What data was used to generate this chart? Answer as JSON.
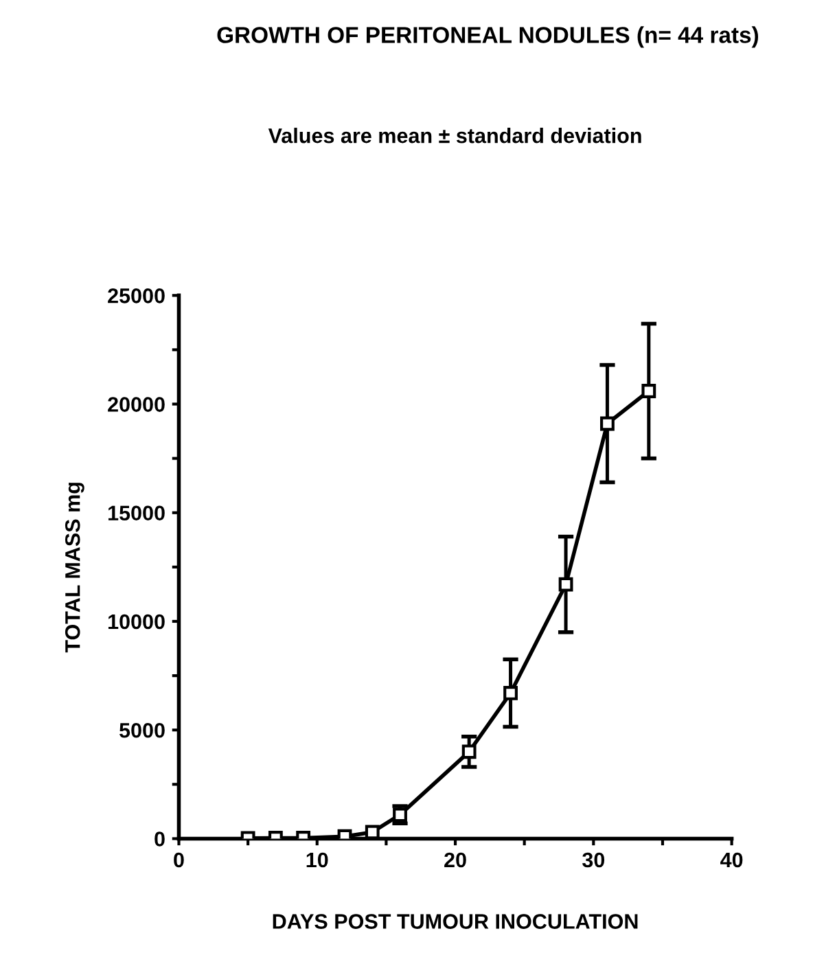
{
  "chart_data": {
    "type": "line",
    "title": "GROWTH OF PERITONEAL NODULES (n= 44 rats)",
    "subtitle": "Values are mean ± standard deviation",
    "xlabel": "DAYS POST TUMOUR INOCULATION",
    "ylabel": "TOTAL MASS mg",
    "series": [
      {
        "color": "#000000",
        "x": [
          5,
          7,
          9,
          12,
          14,
          16,
          21,
          24,
          28,
          31,
          34
        ],
        "values": [
          20,
          30,
          30,
          100,
          300,
          1100,
          4000,
          6700,
          11700,
          19100,
          20600
        ],
        "errors": [
          null,
          null,
          null,
          null,
          null,
          400,
          700,
          1550,
          2200,
          2700,
          3100
        ]
      }
    ],
    "marker": "square",
    "line_style": "solid",
    "grid": false,
    "legend": false,
    "xlim": [
      0,
      40
    ],
    "ylim": [
      0,
      25000
    ],
    "xticks": [
      0,
      {
        "value": 5,
        "label": null
      },
      10,
      {
        "value": 15,
        "label": null
      },
      20,
      {
        "value": 25,
        "label": null
      },
      30,
      {
        "value": 35,
        "label": null
      },
      40
    ],
    "yticks": [
      0,
      {
        "value": 2500,
        "label": null
      },
      5000,
      {
        "value": 7500,
        "label": null
      },
      10000,
      {
        "value": 12500,
        "label": null
      },
      15000,
      {
        "value": 17500,
        "label": null
      },
      20000,
      {
        "value": 22500,
        "label": null
      },
      25000
    ]
  }
}
